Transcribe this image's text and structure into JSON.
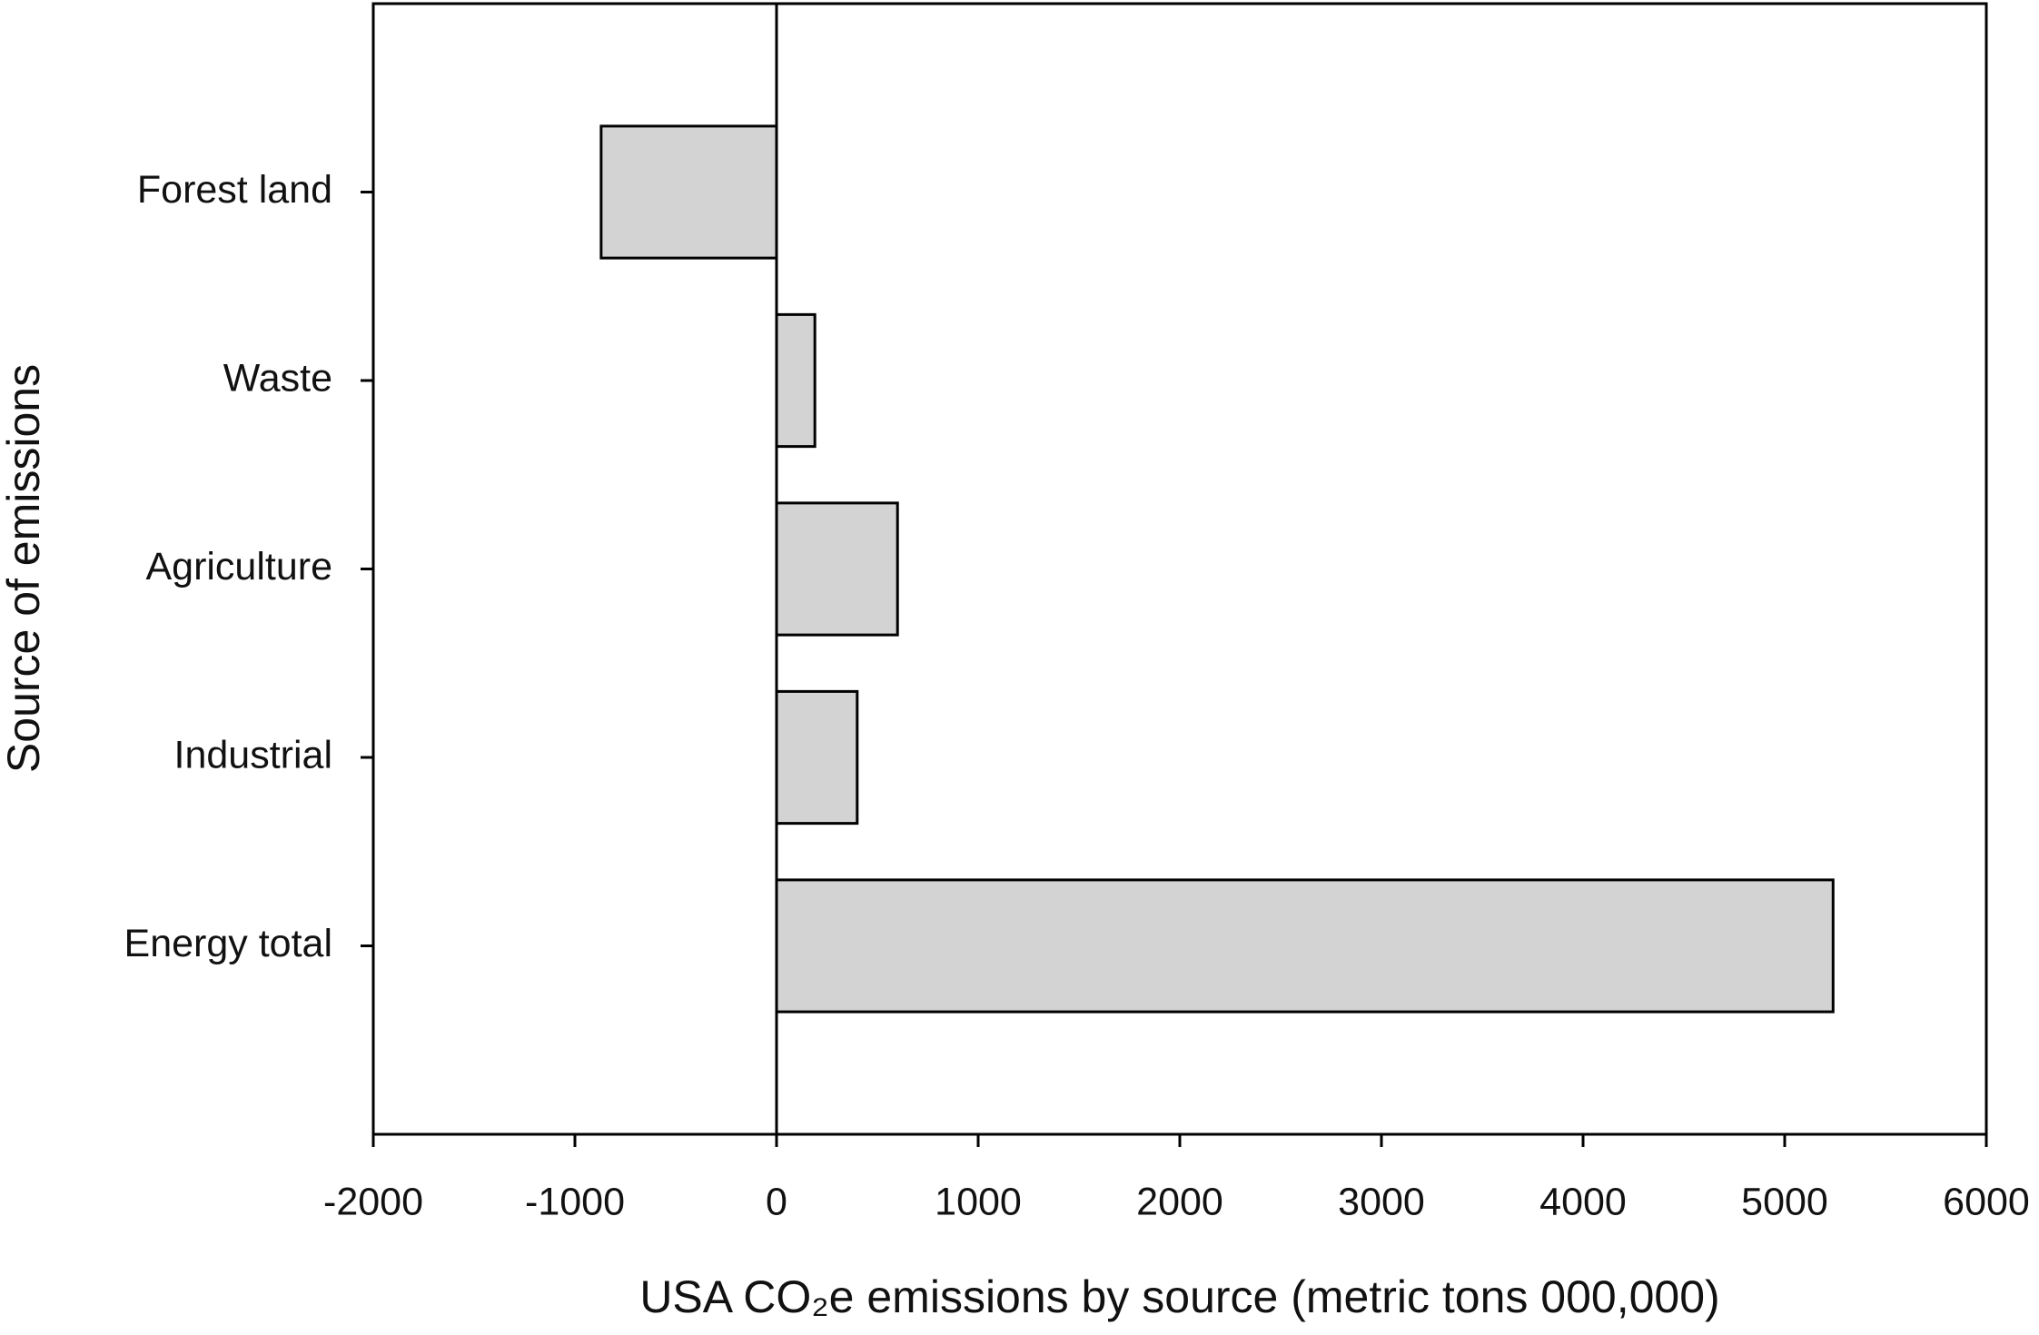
{
  "chart_data": {
    "type": "barh",
    "categories": [
      "Forest land",
      "Waste",
      "Agriculture",
      "Industrial",
      "Energy total"
    ],
    "values": [
      -870,
      190,
      600,
      400,
      5240
    ],
    "color": "#d3d3d3",
    "xlim": [
      -2000,
      6000
    ],
    "xticks": [
      -2000,
      -1000,
      0,
      1000,
      2000,
      3000,
      4000,
      5000,
      6000
    ],
    "xlabel": "USA CO₂e emissions by source (metric tons 000,000)",
    "ylabel": "Source of emissions",
    "grid": false
  }
}
